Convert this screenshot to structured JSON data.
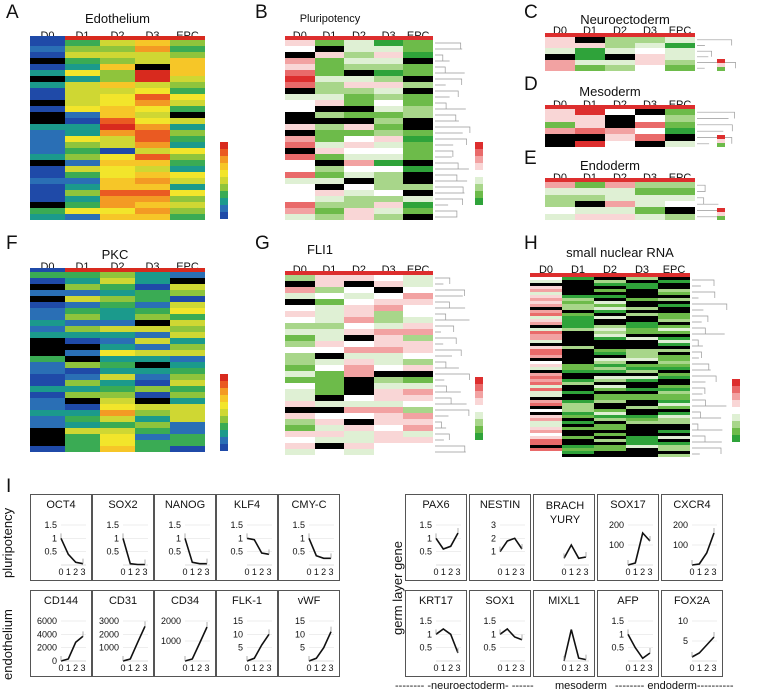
{
  "panel_labels": [
    "A",
    "B",
    "C",
    "D",
    "E",
    "F",
    "G",
    "H",
    "I"
  ],
  "columns": [
    "D0",
    "D1",
    "D2",
    "D3",
    "EPC"
  ],
  "heatmaps": [
    {
      "id": "A",
      "title": "Edothelium"
    },
    {
      "id": "B",
      "title": "Pluripotency"
    },
    {
      "id": "C",
      "title": "Neuroectoderm"
    },
    {
      "id": "D",
      "title": "Mesoderm"
    },
    {
      "id": "E",
      "title": "Endoderm"
    },
    {
      "id": "F",
      "title": "PKC"
    },
    {
      "id": "G",
      "title": "FLI1"
    },
    {
      "id": "H",
      "title": "small nuclear RNA"
    }
  ],
  "row_labels": {
    "pluripotency": "pluripotency",
    "endothelium": "endothelium",
    "germ": "germ layer gene"
  },
  "footer": {
    "neuro": "-------- -neuroectoderm- ------",
    "meso": "mesoderm",
    "endo": "-------- endoderm----------"
  },
  "chart_data": [
    {
      "type": "line",
      "title": "OCT4",
      "x": [
        0,
        1,
        2,
        3
      ],
      "values": [
        1.0,
        0.4,
        0.1,
        0.05
      ],
      "yticks": [
        "0.5",
        "1",
        "1.5"
      ],
      "ylim": [
        0,
        1.5
      ]
    },
    {
      "type": "line",
      "title": "SOX2",
      "x": [
        0,
        1,
        2,
        3
      ],
      "values": [
        1.0,
        0.05,
        0.02,
        0.02
      ],
      "yticks": [
        "0.5",
        "1",
        "1.5"
      ],
      "ylim": [
        0,
        1.5
      ]
    },
    {
      "type": "line",
      "title": "NANOG",
      "x": [
        0,
        1,
        2,
        3
      ],
      "values": [
        1.0,
        0.1,
        0.05,
        0.05
      ],
      "yticks": [
        "0.5",
        "1",
        "1.5"
      ],
      "ylim": [
        0,
        1.5
      ]
    },
    {
      "type": "line",
      "title": "KLF4",
      "x": [
        0,
        1,
        2,
        3
      ],
      "values": [
        1.0,
        0.95,
        0.45,
        0.4
      ],
      "yticks": [
        "0.5",
        "1",
        "1.5"
      ],
      "ylim": [
        0,
        1.5
      ]
    },
    {
      "type": "line",
      "title": "CMY-C",
      "x": [
        0,
        1,
        2,
        3
      ],
      "values": [
        1.0,
        0.35,
        0.25,
        0.25
      ],
      "yticks": [
        "0.5",
        "1",
        "1.5"
      ],
      "ylim": [
        0,
        1.5
      ]
    },
    {
      "type": "line",
      "title": "CD144",
      "x": [
        0,
        1,
        2,
        3
      ],
      "values": [
        0,
        300,
        2800,
        3700
      ],
      "yticks": [
        "0",
        "2000",
        "4000",
        "6000"
      ],
      "ylim": [
        0,
        6000
      ]
    },
    {
      "type": "line",
      "title": "CD31",
      "x": [
        0,
        1,
        2,
        3
      ],
      "values": [
        0,
        150,
        1400,
        2600
      ],
      "yticks": [
        "1000",
        "2000",
        "3000"
      ],
      "ylim": [
        0,
        3000
      ]
    },
    {
      "type": "line",
      "title": "CD34",
      "x": [
        0,
        1,
        2,
        3
      ],
      "values": [
        0,
        100,
        900,
        1700
      ],
      "yticks": [
        "1000",
        "2000"
      ],
      "ylim": [
        0,
        2000
      ]
    },
    {
      "type": "line",
      "title": "FLK-1",
      "x": [
        0,
        1,
        2,
        3
      ],
      "values": [
        0,
        1,
        6,
        10
      ],
      "yticks": [
        "5",
        "10",
        "15"
      ],
      "ylim": [
        0,
        15
      ]
    },
    {
      "type": "line",
      "title": "vWF",
      "x": [
        0,
        1,
        2,
        3
      ],
      "values": [
        0,
        1,
        5,
        11
      ],
      "yticks": [
        "5",
        "10",
        "15"
      ],
      "ylim": [
        0,
        15
      ]
    },
    {
      "type": "line",
      "title": "PAX6",
      "x": [
        0,
        1,
        2,
        3
      ],
      "values": [
        1.0,
        0.6,
        0.7,
        1.2
      ],
      "yticks": [
        "0.5",
        "1",
        "1.5"
      ],
      "ylim": [
        0,
        1.5
      ]
    },
    {
      "type": "line",
      "title": "NESTIN",
      "x": [
        0,
        1,
        2,
        3
      ],
      "values": [
        1.0,
        1.8,
        2.0,
        1.2
      ],
      "yticks": [
        "1",
        "2",
        "3"
      ],
      "ylim": [
        0,
        3
      ]
    },
    {
      "type": "line",
      "title": "BRACH YURY",
      "x": [
        0,
        1,
        2,
        3
      ],
      "values": [
        1,
        3,
        1,
        1.2
      ],
      "yticks": [],
      "ylim": [
        0,
        6
      ]
    },
    {
      "type": "line",
      "title": "SOX17",
      "x": [
        0,
        1,
        2,
        3
      ],
      "values": [
        0,
        10,
        160,
        120
      ],
      "yticks": [
        "100",
        "200"
      ],
      "ylim": [
        0,
        200
      ]
    },
    {
      "type": "line",
      "title": "CXCR4",
      "x": [
        0,
        1,
        2,
        3
      ],
      "values": [
        0,
        5,
        60,
        160
      ],
      "yticks": [
        "100",
        "200"
      ],
      "ylim": [
        0,
        200
      ]
    },
    {
      "type": "line",
      "title": "KRT17",
      "x": [
        0,
        1,
        2,
        3
      ],
      "values": [
        1.0,
        1.2,
        1.0,
        0.3
      ],
      "yticks": [
        "0.5",
        "1",
        "1.5"
      ],
      "ylim": [
        0,
        1.5
      ]
    },
    {
      "type": "line",
      "title": "SOX1",
      "x": [
        0,
        1,
        2,
        3
      ],
      "values": [
        1.0,
        1.2,
        0.9,
        0.8
      ],
      "yticks": [
        "0.5",
        "1",
        "1.5"
      ],
      "ylim": [
        0,
        1.5
      ]
    },
    {
      "type": "line",
      "title": "MIXL1",
      "x": [
        0,
        1,
        2,
        3
      ],
      "values": [
        0,
        11,
        1,
        0.5
      ],
      "yticks": [],
      "ylim": [
        0,
        14
      ]
    },
    {
      "type": "line",
      "title": "AFP",
      "x": [
        0,
        1,
        2,
        3
      ],
      "values": [
        1.0,
        0.5,
        0.1,
        0.3
      ],
      "yticks": [
        "0.5",
        "1",
        "1.5"
      ],
      "ylim": [
        0,
        1.5
      ]
    },
    {
      "type": "line",
      "title": "FOX2A",
      "x": [
        0,
        1,
        2,
        3
      ],
      "values": [
        1,
        2,
        4,
        6
      ],
      "yticks": [
        "5",
        "10"
      ],
      "ylim": [
        0,
        10
      ]
    }
  ]
}
